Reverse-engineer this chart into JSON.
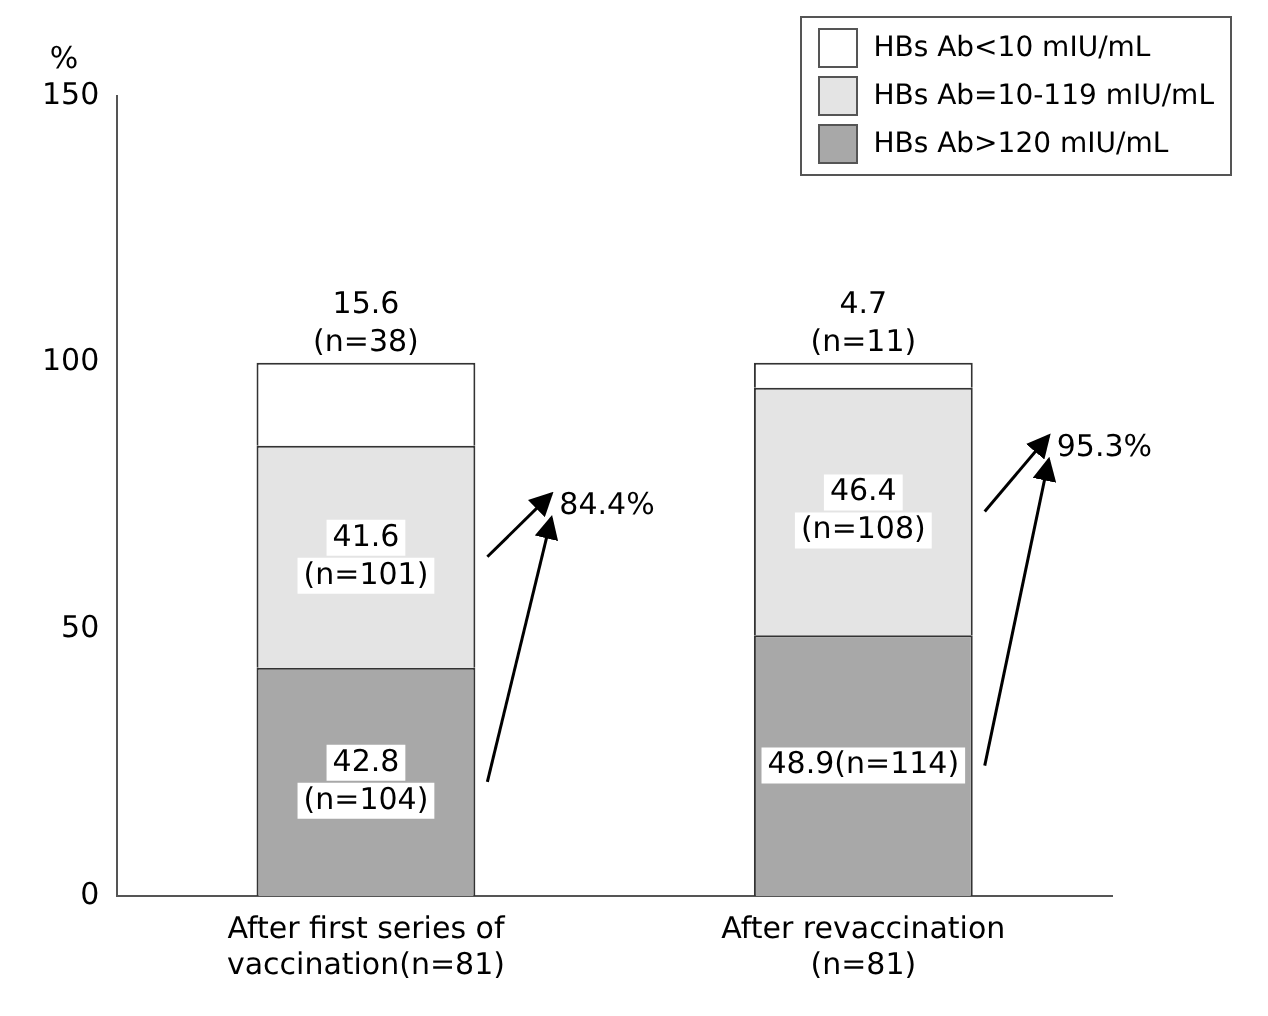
{
  "chart_data": {
    "type": "bar",
    "stacked": true,
    "ylabel": "%",
    "categories": [
      "After first series of vaccination(n=81)",
      "After revaccination (n=81)"
    ],
    "series": [
      {
        "name": "HBs Ab>120 mIU/mL",
        "color": "#a8a8a8",
        "values": [
          42.8,
          48.9
        ],
        "value_labels": [
          "42.8\n(n=104)",
          "48.9(n=114)"
        ]
      },
      {
        "name": "HBs Ab=10-119 mIU/mL",
        "color": "#e4e4e4",
        "values": [
          41.6,
          46.4
        ],
        "value_labels": [
          "41.6\n(n=101)",
          "46.4\n(n=108)"
        ]
      },
      {
        "name": "HBs Ab<10 mIU/mL",
        "color": "#ffffff",
        "values": [
          15.6,
          4.7
        ],
        "value_labels": [
          "15.6\n(n=38)",
          "4.7\n(n=11)"
        ]
      }
    ],
    "ylim": [
      0,
      150
    ],
    "yticks": [
      0,
      50,
      100,
      150
    ],
    "grid": false,
    "legend": "top right",
    "annotations": [
      "84.4%",
      "95.3%"
    ]
  }
}
